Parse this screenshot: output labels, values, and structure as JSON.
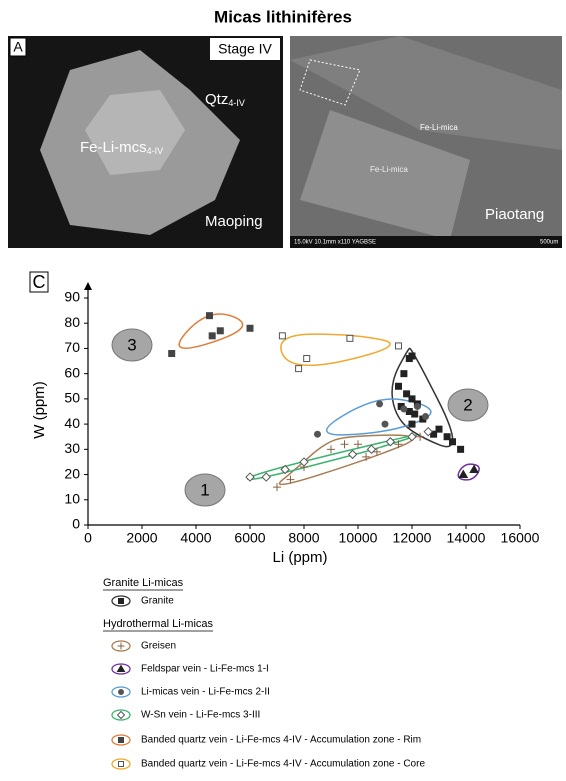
{
  "title": "Micas lithinifères",
  "panel_a": {
    "label": "A",
    "stage": "Stage IV",
    "qtz": "Qtz",
    "qtz_sub": "4-IV",
    "mica": "Fe-Li-mcs",
    "mica_sub": "4-IV",
    "locality": "Maoping"
  },
  "panel_b": {
    "locality": "Piaotang",
    "mica_1": "Fe-Li-mica",
    "mica_2": "Fe-Li-mica",
    "info": "15.0kV 10.1mm x110 YAGBSE",
    "scale": "500um"
  },
  "chart_data": {
    "type": "scatter",
    "panel_label": "C",
    "x_label": "Li (ppm)",
    "y_label": "W (ppm)",
    "xlim": [
      0,
      16000
    ],
    "ylim": [
      0,
      90
    ],
    "xticks": [
      0,
      2000,
      4000,
      6000,
      8000,
      10000,
      12000,
      14000,
      16000
    ],
    "yticks": [
      0,
      10,
      20,
      30,
      40,
      50,
      60,
      70,
      80,
      90
    ],
    "annotations": [
      "3",
      "2",
      "1"
    ],
    "legend_groups": [
      "Granite Li-micas",
      "Hydrothermal Li-micas"
    ],
    "series": [
      {
        "name": "Granite",
        "group": 0,
        "color": "#333333",
        "marker": "square",
        "filled": true,
        "marker_color": "#222222",
        "x": [
          12000,
          11900,
          11700,
          11500,
          11800,
          12000,
          11600,
          12200,
          11900,
          12100,
          12400,
          12000,
          13000,
          13300,
          13500,
          13800,
          12800
        ],
        "values": [
          67,
          66,
          60,
          55,
          52,
          50,
          47,
          48,
          45,
          44,
          42,
          40,
          38,
          35,
          33,
          30,
          36
        ]
      },
      {
        "name": "Greisen",
        "group": 1,
        "color": "#a67c52",
        "marker": "plus",
        "filled": false,
        "marker_color": "#8a6040",
        "x": [
          7000,
          7500,
          8000,
          9000,
          9500,
          10000,
          10300,
          10700,
          11500,
          12300
        ],
        "values": [
          15,
          18,
          23,
          30,
          32,
          32,
          27,
          29,
          32,
          35
        ]
      },
      {
        "name": "Feldspar vein - Li-Fe-mcs 1-I",
        "group": 1,
        "color": "#7030a0",
        "marker": "triangle",
        "filled": true,
        "marker_color": "#222222",
        "x": [
          13900,
          14300
        ],
        "values": [
          20,
          22
        ]
      },
      {
        "name": "Li-micas vein - Li-Fe-mcs 2-II",
        "group": 1,
        "color": "#5b9bd5",
        "marker": "circle",
        "filled": true,
        "marker_color": "#555555",
        "x": [
          8500,
          10800,
          11700,
          12200,
          12500,
          11000
        ],
        "values": [
          36,
          48,
          46,
          47,
          43,
          40
        ]
      },
      {
        "name": "W-Sn vein - Li-Fe-mcs 3-III",
        "group": 1,
        "color": "#3cb371",
        "marker": "diamond",
        "filled": false,
        "marker_color": "#555555",
        "x": [
          6000,
          6600,
          7300,
          8000,
          9800,
          10500,
          11200,
          12000,
          12600
        ],
        "values": [
          19,
          19,
          22,
          25,
          28,
          30,
          33,
          35,
          37
        ]
      },
      {
        "name": "Banded quartz vein - Li-Fe-mcs 4-IV - Accumulation zone - Rim",
        "group": 1,
        "color": "#e07b39",
        "marker": "square",
        "filled": true,
        "marker_color": "#444444",
        "x": [
          3100,
          4500,
          4600,
          4900,
          6000
        ],
        "values": [
          68,
          83,
          75,
          77,
          78
        ]
      },
      {
        "name": "Banded quartz vein - Li-Fe-mcs 4-IV - Accumulation zone - Core",
        "group": 1,
        "color": "#f0a830",
        "marker": "square",
        "filled": false,
        "marker_color": "#555555",
        "x": [
          7200,
          7800,
          8100,
          9700,
          11500
        ],
        "values": [
          75,
          62,
          66,
          74,
          71
        ]
      }
    ]
  }
}
